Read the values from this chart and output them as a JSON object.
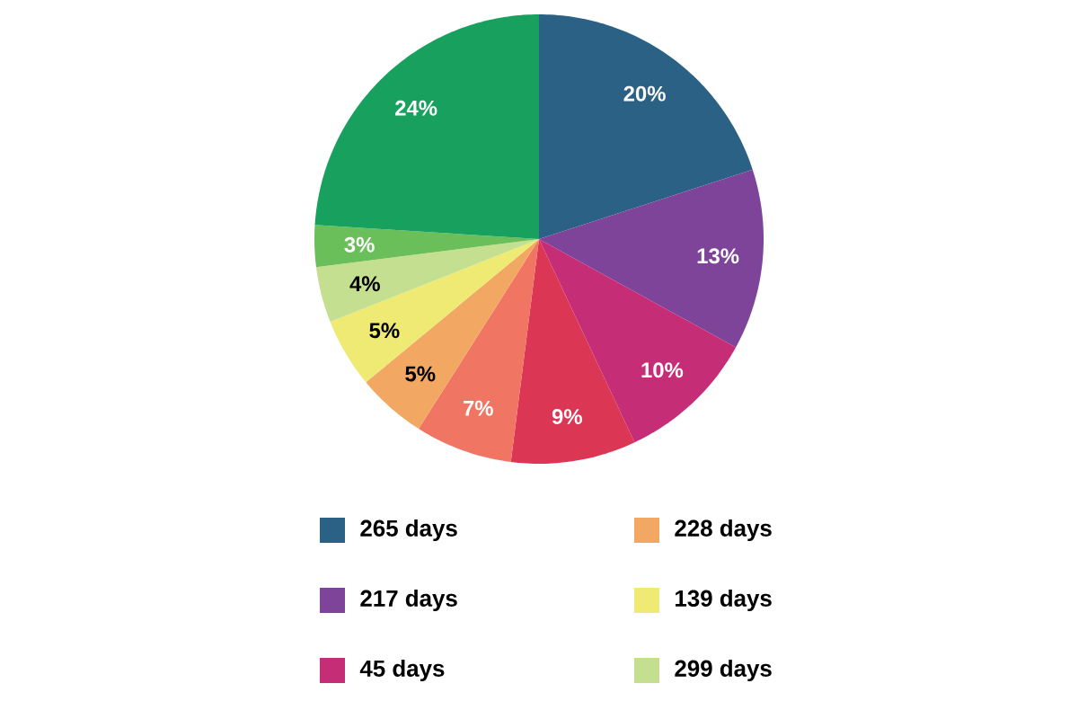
{
  "chart_data": {
    "type": "pie",
    "categories": [
      "265 days",
      "217 days",
      "45 days",
      null,
      null,
      "228 days",
      "139 days",
      "299 days",
      null,
      null
    ],
    "values": [
      20,
      13,
      10,
      9,
      7,
      5,
      5,
      4,
      3,
      24
    ],
    "colors": [
      "#2a6184",
      "#7e449a",
      "#c52d76",
      "#dc3655",
      "#f07563",
      "#f2a863",
      "#eeea74",
      "#c3df8f",
      "#6bbf5a",
      "#17a05e"
    ],
    "value_labels": [
      "20%",
      "13%",
      "10%",
      "9%",
      "7%",
      "5%",
      "5%",
      "4%",
      "3%",
      "24%"
    ],
    "legend": "bottom"
  }
}
